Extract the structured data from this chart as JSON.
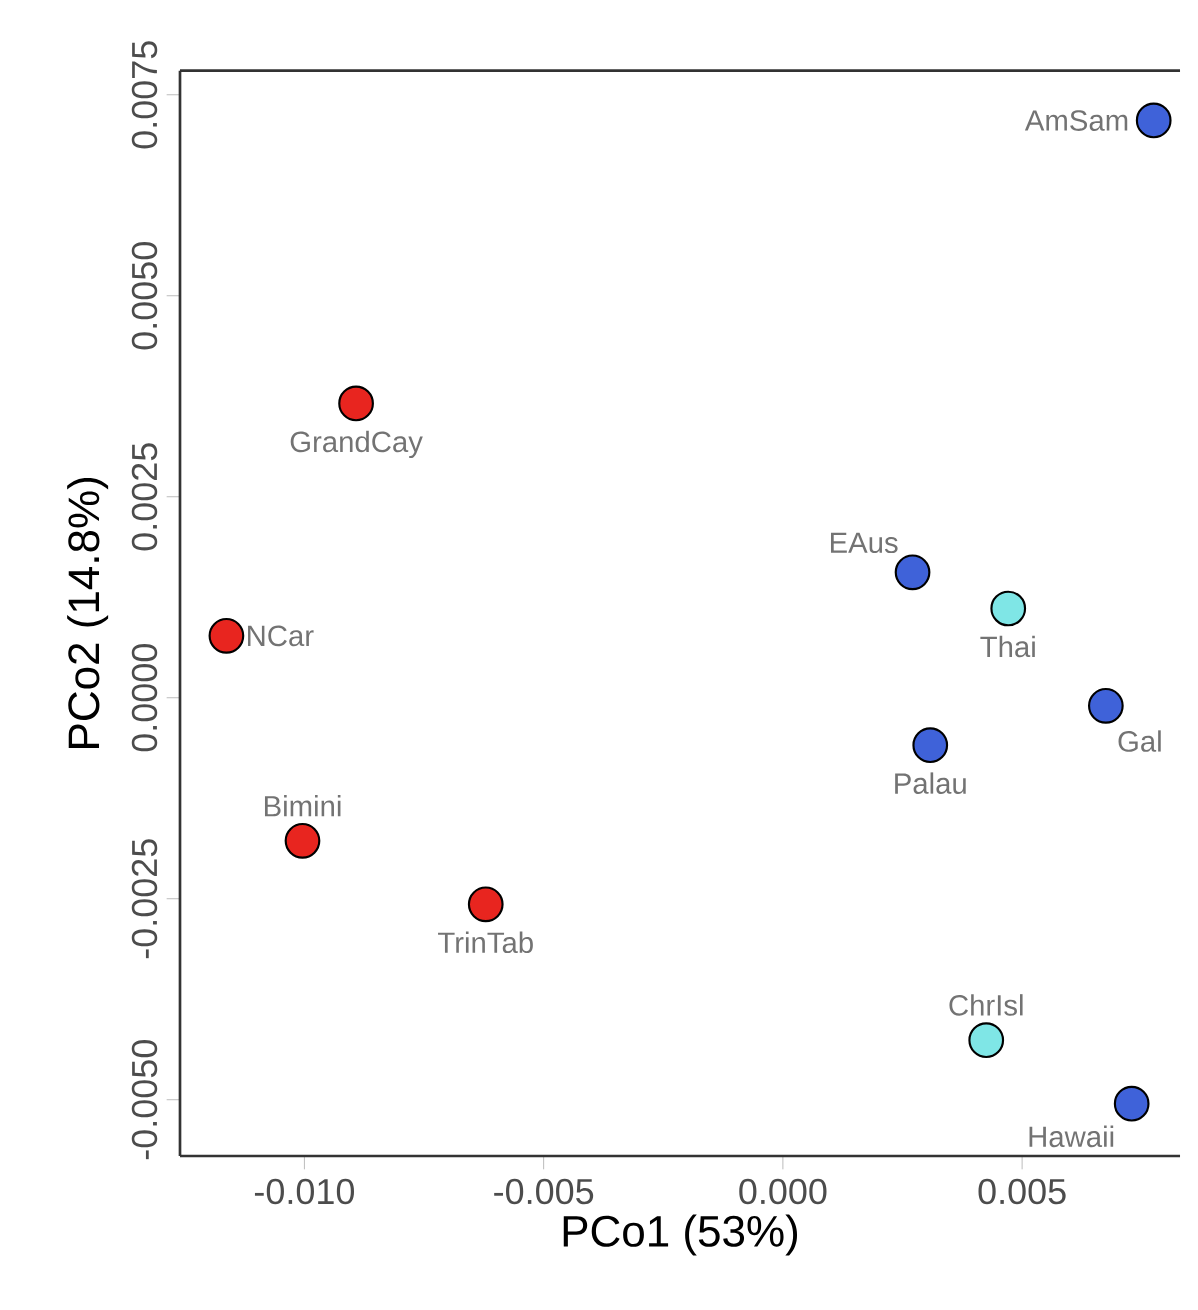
{
  "chart_data": {
    "type": "scatter",
    "xlabel": "PCo1 (53%)",
    "ylabel": "PCo2 (14.8%)",
    "xlim": [
      -0.0126,
      0.0083
    ],
    "ylim": [
      -0.0057,
      0.0078
    ],
    "xticks": [
      {
        "value": -0.01,
        "label": "-0.010"
      },
      {
        "value": -0.005,
        "label": "-0.005"
      },
      {
        "value": 0,
        "label": "0.000"
      },
      {
        "value": 0.005,
        "label": "0.005"
      }
    ],
    "yticks": [
      {
        "value": -0.005,
        "label": "-0.0050"
      },
      {
        "value": -0.0025,
        "label": "-0.0025"
      },
      {
        "value": 0,
        "label": "0.0000"
      },
      {
        "value": 0.0025,
        "label": "0.0025"
      },
      {
        "value": 0.005,
        "label": "0.0050"
      },
      {
        "value": 0.0075,
        "label": "0.0075"
      }
    ],
    "marker": "circle",
    "series": [
      {
        "color": "#e8251f",
        "x": [
          -0.00892,
          -0.01163,
          -0.01004,
          -0.00621
        ],
        "values": [
          0.00366,
          0.00077,
          -0.00178,
          -0.00257
        ]
      },
      {
        "color": "#3f62d9",
        "x": [
          0.00775,
          0.00271,
          0.00675,
          0.00308,
          0.00729
        ],
        "values": [
          0.00718,
          0.00156,
          -0.0001,
          -0.00059,
          -0.00505
        ]
      },
      {
        "color": "#7fe6e6",
        "x": [
          0.00471,
          0.00425
        ],
        "values": [
          0.00111,
          -0.00426
        ]
      }
    ],
    "annotations": [
      {
        "text": "AmSam",
        "x": 0.00775,
        "y": 0.00718
      },
      {
        "text": "GrandCay",
        "x": -0.00892,
        "y": 0.00366
      },
      {
        "text": "EAus",
        "x": 0.00271,
        "y": 0.00156
      },
      {
        "text": "Thai",
        "x": 0.00471,
        "y": 0.00111
      },
      {
        "text": "NCar",
        "x": -0.01163,
        "y": 0.00077
      },
      {
        "text": "Gal",
        "x": 0.00675,
        "y": -0.0001
      },
      {
        "text": "Palau",
        "x": 0.00308,
        "y": -0.00059
      },
      {
        "text": "Bimini",
        "x": -0.01004,
        "y": -0.00178
      },
      {
        "text": "TrinTab",
        "x": -0.00621,
        "y": -0.00257
      },
      {
        "text": "ChrIsl",
        "x": 0.00425,
        "y": -0.00426
      },
      {
        "text": "Hawaii",
        "x": 0.00729,
        "y": -0.00505
      }
    ]
  }
}
